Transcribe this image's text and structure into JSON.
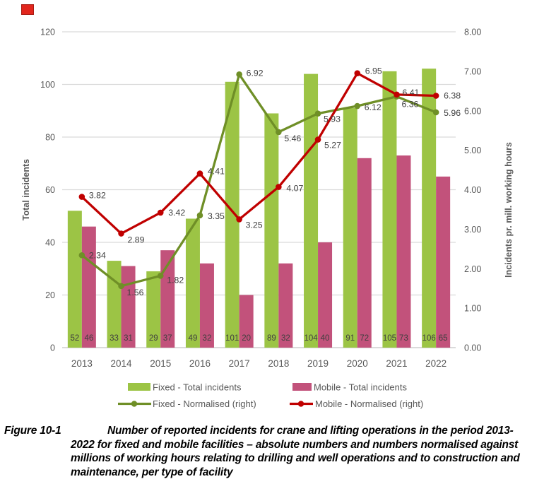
{
  "annotation_marker": {
    "fill": "#e2261d",
    "border": "#a81a12"
  },
  "chart_data": {
    "type": "bar",
    "subtype": "combo-bar-line",
    "categories": [
      "2013",
      "2014",
      "2015",
      "2016",
      "2017",
      "2018",
      "2019",
      "2020",
      "2021",
      "2022"
    ],
    "series": [
      {
        "name": "Fixed - Total incidents",
        "kind": "bar",
        "axis": "left",
        "color": "#9cc445",
        "values": [
          52,
          33,
          29,
          49,
          101,
          89,
          104,
          91,
          105,
          106
        ]
      },
      {
        "name": "Mobile - Total incidents",
        "kind": "bar",
        "axis": "left",
        "color": "#c2527b",
        "values": [
          46,
          31,
          37,
          32,
          20,
          32,
          40,
          72,
          73,
          65
        ]
      },
      {
        "name": "Fixed - Normalised (right)",
        "kind": "line",
        "axis": "right",
        "color": "#6f8f27",
        "values": [
          2.34,
          1.56,
          1.82,
          3.35,
          6.92,
          5.46,
          5.93,
          6.12,
          6.36,
          5.96
        ]
      },
      {
        "name": "Mobile - Normalised (right)",
        "kind": "line",
        "axis": "right",
        "color": "#c00000",
        "values": [
          3.82,
          2.89,
          3.42,
          4.41,
          3.25,
          4.07,
          5.27,
          6.95,
          6.41,
          6.38
        ]
      }
    ],
    "left_axis": {
      "title": "Total incidents",
      "min": 0,
      "max": 120,
      "step": 20,
      "decimals": 0
    },
    "right_axis": {
      "title": "Incidents pr. mill. working hours",
      "min": 0,
      "max": 8,
      "step": 1,
      "decimals": 2
    },
    "grid": true,
    "legend_position": "bottom",
    "style_colors": {
      "grid": "#dadada",
      "baseline": "#c3c3c3",
      "tick_text": "#595959",
      "axis_title": "#595959",
      "bar_label": "#3f3f3f",
      "point_label": "#404040",
      "legend_text": "#595959"
    }
  },
  "caption": {
    "label": "Figure 10-1",
    "text": "Number of reported incidents for crane and lifting operations in the period 2013-2022 for fixed and mobile facilities – absolute numbers and numbers normalised against millions of working hours relating to drilling and well operations and to construction and maintenance, per type of facility"
  }
}
